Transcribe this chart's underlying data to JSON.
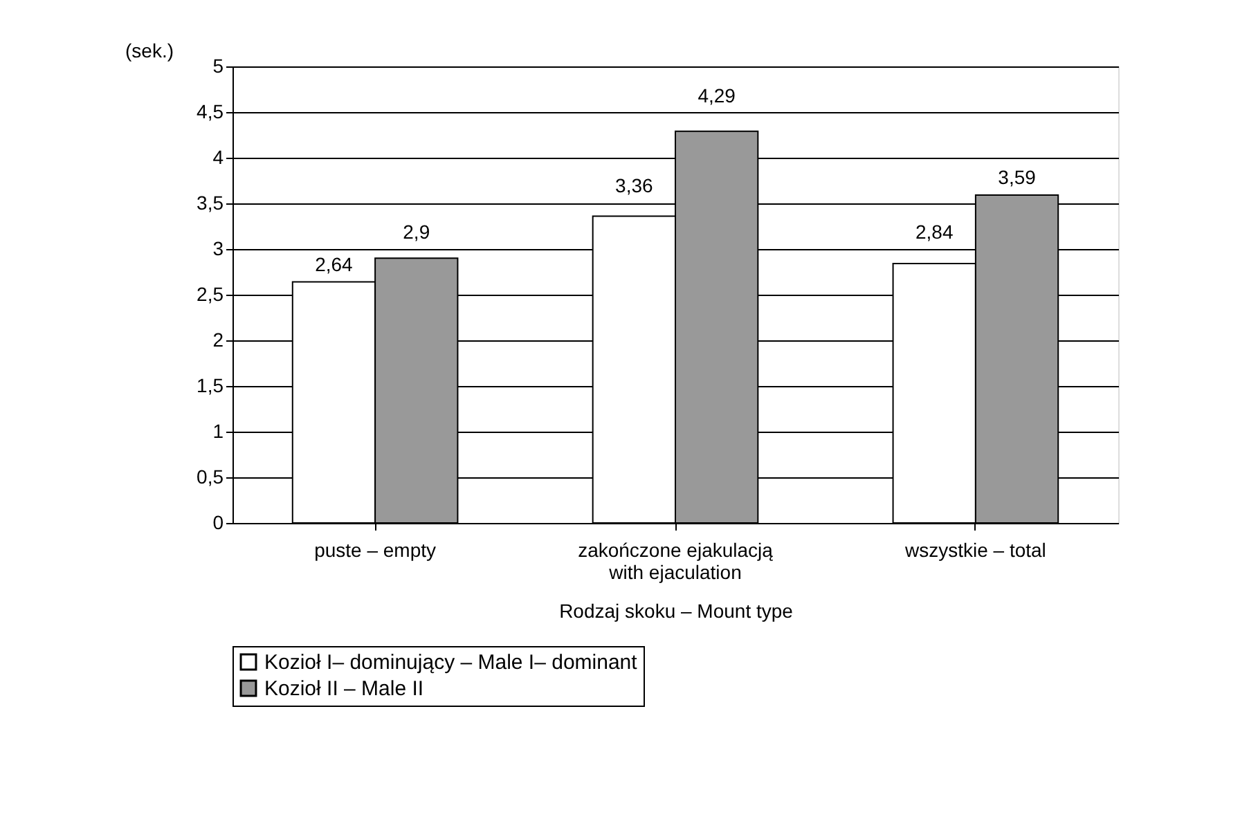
{
  "chart_data": {
    "type": "bar",
    "categories": [
      "puste – empty",
      "zakończone ejakulacją\nwith ejaculation",
      "wszystkie – total"
    ],
    "series": [
      {
        "name": "Kozioł I– dominujący – Male I– dominant",
        "color": "#ffffff",
        "values": [
          2.64,
          3.36,
          2.84
        ],
        "value_labels": [
          "2,64",
          "3,36",
          "2,84"
        ]
      },
      {
        "name": "Kozioł II – Male II",
        "color": "#999999",
        "values": [
          2.9,
          4.29,
          3.59
        ],
        "value_labels": [
          "2,9",
          "4,29",
          "3,59"
        ]
      }
    ],
    "ylim": [
      0,
      5
    ],
    "yticks": [
      0,
      {
        "value": 0.5,
        "label": "0,5"
      },
      1,
      {
        "value": 1.5,
        "label": "1,5"
      },
      2,
      {
        "value": 2.5,
        "label": "2,5"
      },
      3,
      {
        "value": 3.5,
        "label": "3,5"
      },
      4,
      {
        "value": 4.5,
        "label": "4,5"
      },
      5
    ],
    "xlabel": "Rodzaj skoku –  Mount type",
    "ylabel": "(sek.)",
    "grid": "y",
    "legend": "bottom"
  }
}
